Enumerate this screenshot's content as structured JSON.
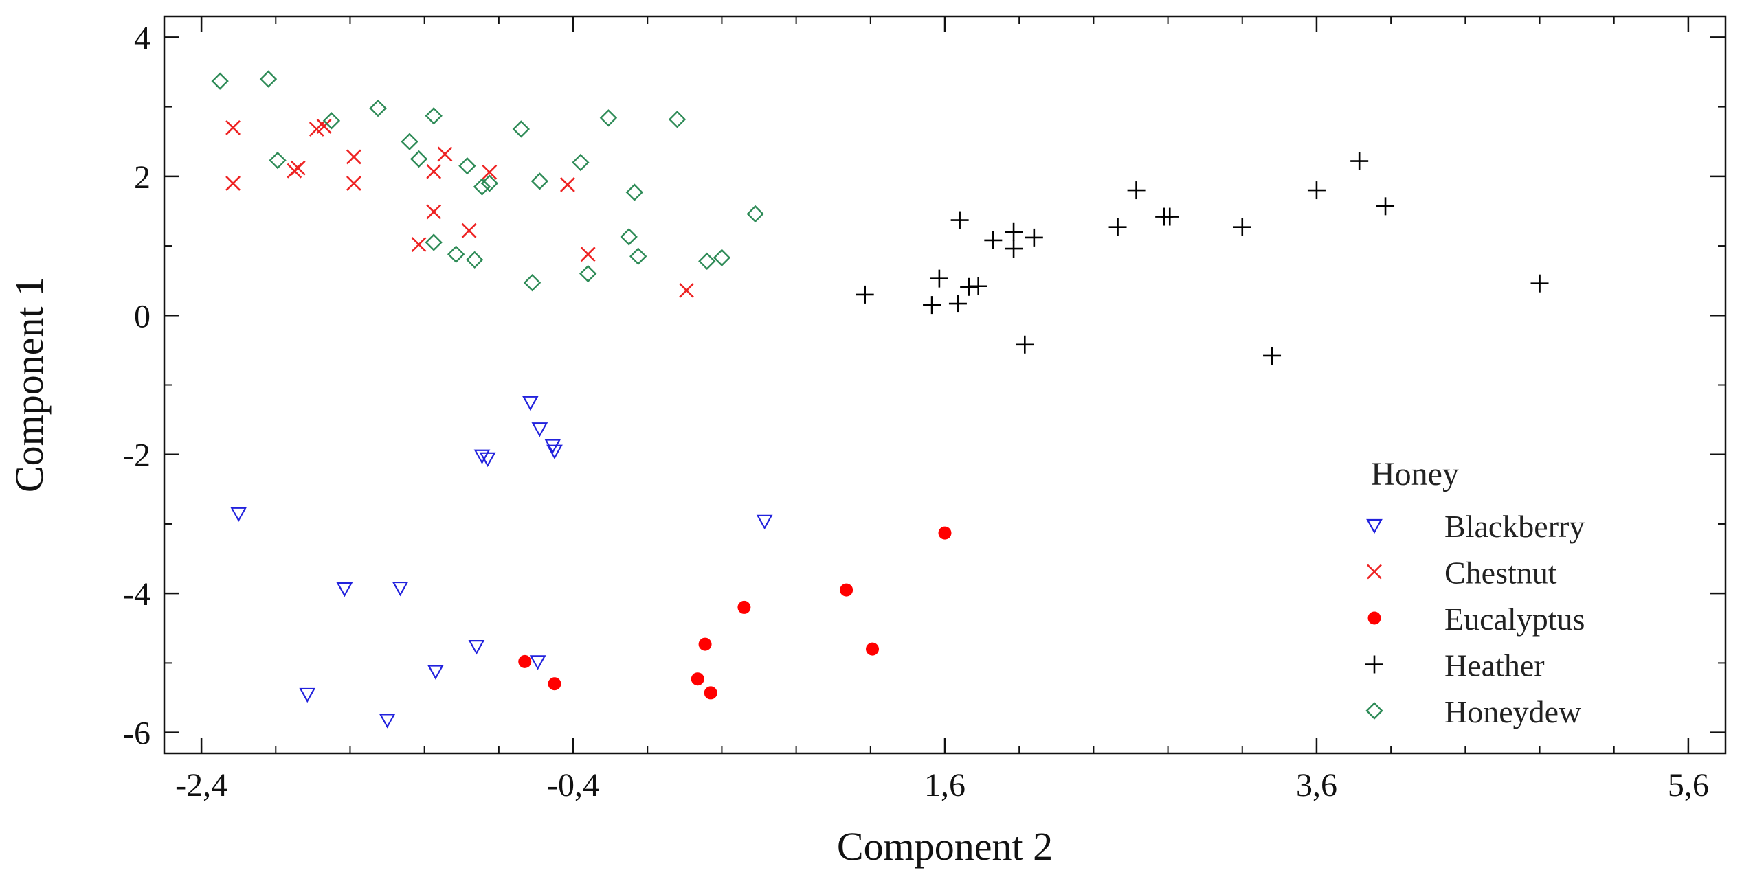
{
  "chart_data": {
    "type": "scatter",
    "title": "",
    "xlabel": "Component 2",
    "ylabel": "Component 1",
    "xlim": [
      -2.6,
      5.8
    ],
    "ylim": [
      -6.3,
      4.3
    ],
    "x_ticks": [
      -2.4,
      -0.4,
      1.6,
      3.6,
      5.6
    ],
    "x_tick_labels": [
      "-2,4",
      "-0,4",
      "1,6",
      "3,6",
      "5,6"
    ],
    "y_ticks": [
      4,
      2,
      0,
      -2,
      -4,
      -6
    ],
    "y_tick_labels": [
      "4",
      "2",
      "0",
      "-2",
      "-4",
      "-6"
    ],
    "grid": false,
    "legend_title": "Honey",
    "legend_position": "bottom-right",
    "series": [
      {
        "name": "Blackberry",
        "marker": "triangle-down",
        "color": "#2222dd",
        "points": [
          [
            -2.2,
            -2.85
          ],
          [
            -1.63,
            -3.93
          ],
          [
            -1.33,
            -3.92
          ],
          [
            -1.83,
            -5.45
          ],
          [
            -1.4,
            -5.82
          ],
          [
            -1.14,
            -5.12
          ],
          [
            -0.92,
            -4.76
          ],
          [
            -0.59,
            -4.98
          ],
          [
            -0.89,
            -2.02
          ],
          [
            -0.86,
            -2.06
          ],
          [
            -0.63,
            -1.25
          ],
          [
            -0.58,
            -1.63
          ],
          [
            -0.51,
            -1.87
          ],
          [
            -0.5,
            -1.95
          ],
          [
            0.63,
            -2.96
          ]
        ]
      },
      {
        "name": "Chestnut",
        "marker": "x",
        "color": "#ee2222",
        "points": [
          [
            -2.23,
            2.7
          ],
          [
            -2.23,
            1.9
          ],
          [
            -1.9,
            2.08
          ],
          [
            -1.88,
            2.12
          ],
          [
            -1.78,
            2.68
          ],
          [
            -1.74,
            2.72
          ],
          [
            -1.58,
            2.28
          ],
          [
            -1.58,
            1.9
          ],
          [
            -1.15,
            2.07
          ],
          [
            -1.09,
            2.32
          ],
          [
            -1.15,
            1.49
          ],
          [
            -1.23,
            1.02
          ],
          [
            -0.96,
            1.22
          ],
          [
            -0.85,
            2.06
          ],
          [
            -0.43,
            1.88
          ],
          [
            -0.32,
            0.88
          ],
          [
            0.21,
            0.36
          ]
        ]
      },
      {
        "name": "Eucalyptus",
        "marker": "circle",
        "color": "#ff0000",
        "points": [
          [
            -0.66,
            -4.98
          ],
          [
            -0.5,
            -5.3
          ],
          [
            0.27,
            -5.23
          ],
          [
            0.31,
            -4.73
          ],
          [
            0.34,
            -5.43
          ],
          [
            0.52,
            -4.2
          ],
          [
            1.07,
            -3.95
          ],
          [
            1.21,
            -4.8
          ],
          [
            1.6,
            -3.13
          ]
        ]
      },
      {
        "name": "Heather",
        "marker": "plus",
        "color": "#000000",
        "points": [
          [
            1.17,
            0.3
          ],
          [
            1.53,
            0.15
          ],
          [
            1.57,
            0.53
          ],
          [
            1.68,
            1.37
          ],
          [
            1.67,
            0.17
          ],
          [
            1.73,
            0.41
          ],
          [
            1.78,
            0.42
          ],
          [
            1.86,
            1.08
          ],
          [
            1.97,
            1.2
          ],
          [
            1.97,
            0.96
          ],
          [
            2.08,
            1.12
          ],
          [
            2.03,
            -0.42
          ],
          [
            2.53,
            1.27
          ],
          [
            2.63,
            1.8
          ],
          [
            2.78,
            1.42
          ],
          [
            2.81,
            1.42
          ],
          [
            3.2,
            1.27
          ],
          [
            3.36,
            -0.58
          ],
          [
            3.6,
            1.8
          ],
          [
            3.83,
            2.22
          ],
          [
            3.97,
            1.57
          ],
          [
            4.8,
            0.46
          ]
        ]
      },
      {
        "name": "Honeydew",
        "marker": "diamond",
        "color": "#2e8b57",
        "points": [
          [
            -2.3,
            3.37
          ],
          [
            -2.04,
            3.4
          ],
          [
            -1.99,
            2.23
          ],
          [
            -1.7,
            2.8
          ],
          [
            -1.45,
            2.98
          ],
          [
            -1.28,
            2.5
          ],
          [
            -1.23,
            2.25
          ],
          [
            -1.15,
            2.87
          ],
          [
            -1.15,
            1.05
          ],
          [
            -1.03,
            0.88
          ],
          [
            -0.97,
            2.15
          ],
          [
            -0.93,
            0.8
          ],
          [
            -0.89,
            1.85
          ],
          [
            -0.85,
            1.9
          ],
          [
            -0.68,
            2.68
          ],
          [
            -0.62,
            0.47
          ],
          [
            -0.58,
            1.93
          ],
          [
            -0.36,
            2.2
          ],
          [
            -0.32,
            0.6
          ],
          [
            -0.21,
            2.84
          ],
          [
            -0.1,
            1.13
          ],
          [
            -0.07,
            1.77
          ],
          [
            -0.05,
            0.85
          ],
          [
            0.16,
            2.82
          ],
          [
            0.32,
            0.78
          ],
          [
            0.4,
            0.83
          ],
          [
            0.58,
            1.46
          ]
        ]
      }
    ]
  }
}
